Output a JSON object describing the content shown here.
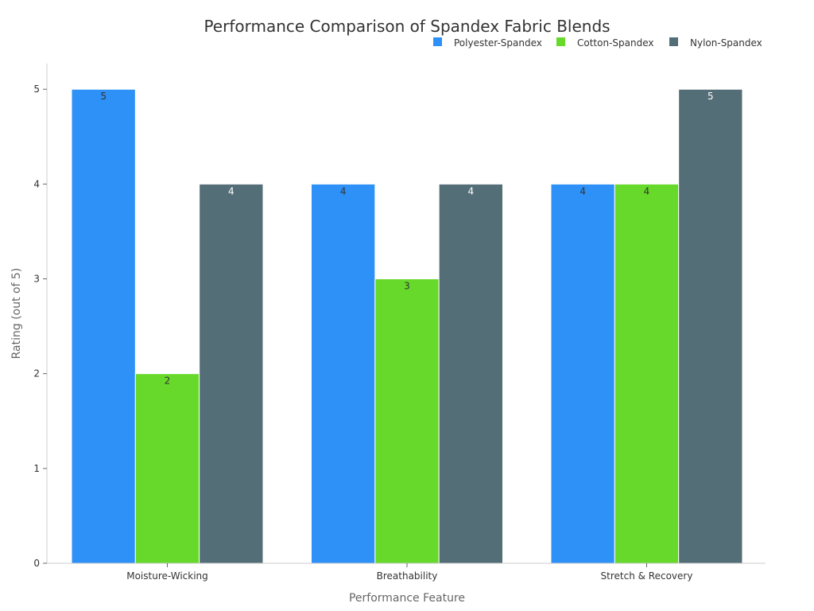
{
  "chart_data": {
    "type": "bar",
    "title": "Performance Comparison of Spandex Fabric Blends",
    "xlabel": "Performance Feature",
    "ylabel": "Rating (out of 5)",
    "categories": [
      "Moisture-Wicking",
      "Breathability",
      "Stretch & Recovery"
    ],
    "series": [
      {
        "name": "Polyester-Spandex",
        "color": "#2E91F7",
        "label_color": "#333333",
        "values": [
          5,
          4,
          4
        ]
      },
      {
        "name": "Cotton-Spandex",
        "color": "#66D92A",
        "label_color": "#333333",
        "values": [
          2,
          3,
          4
        ]
      },
      {
        "name": "Nylon-Spandex",
        "color": "#546E77",
        "label_color": "#ffffff",
        "values": [
          4,
          4,
          5
        ]
      }
    ],
    "ylim": [
      0,
      5.27
    ],
    "yticks": [
      0,
      1,
      2,
      3,
      4,
      5
    ],
    "legend_position": "top-right",
    "grid": false
  }
}
